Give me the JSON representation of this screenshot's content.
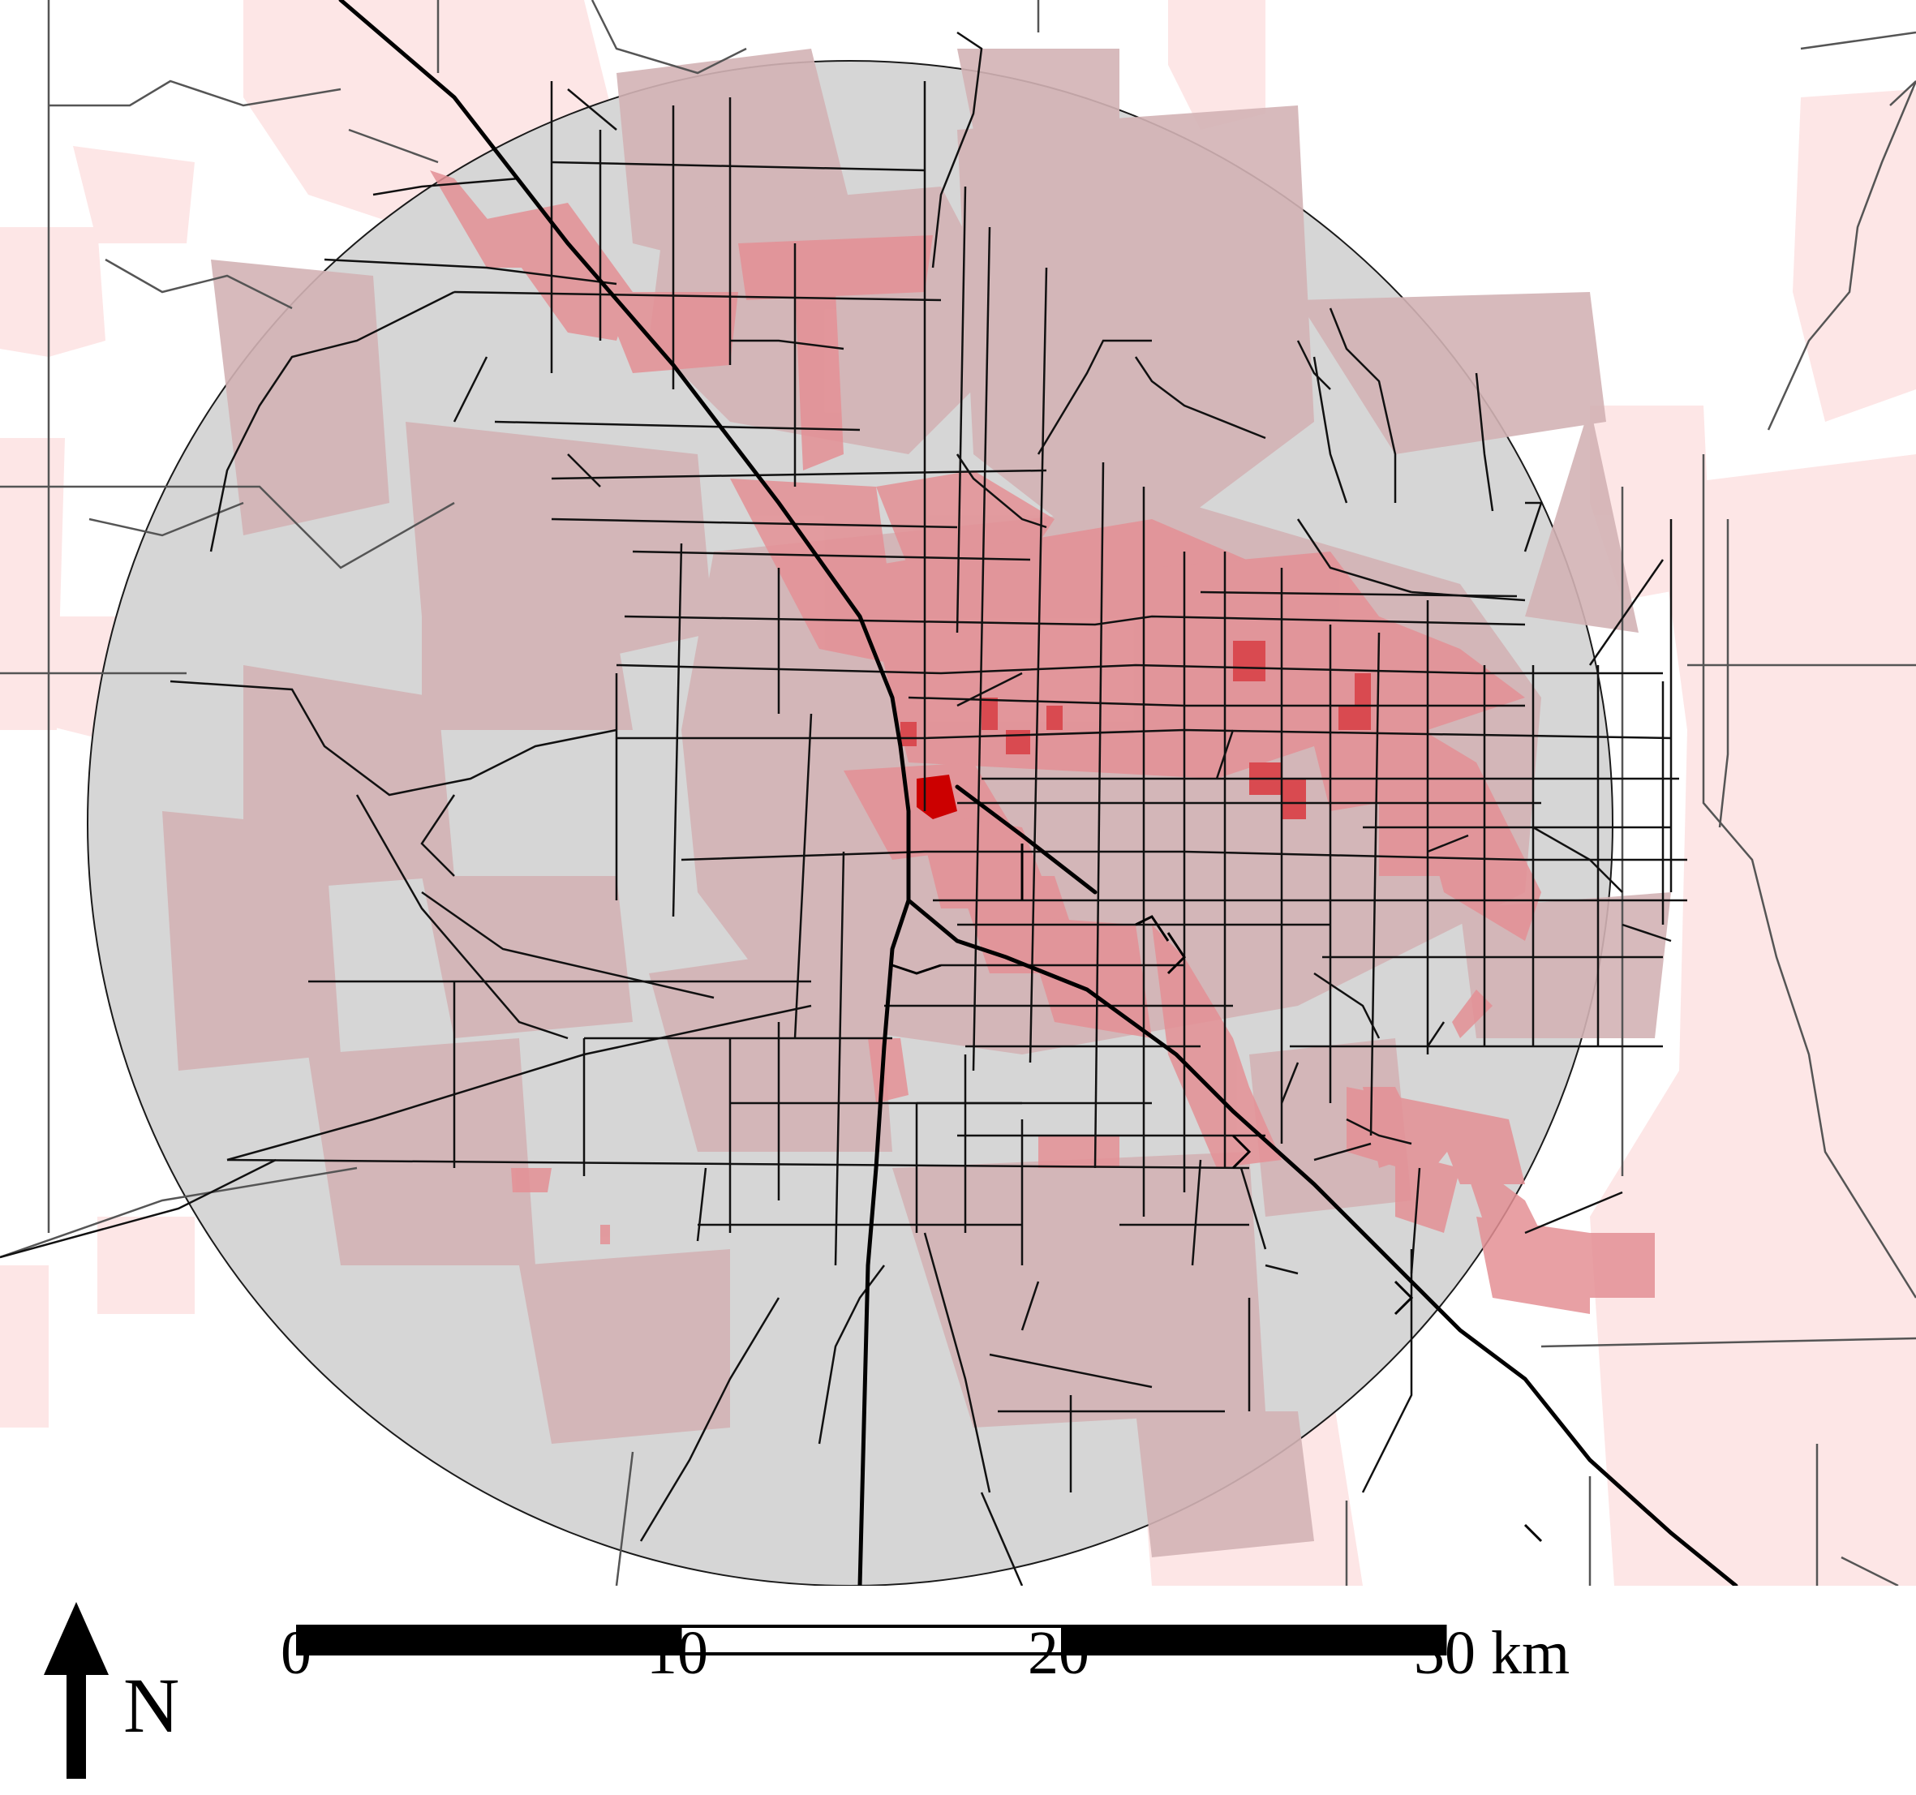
{
  "map": {
    "colors": {
      "background": "#ffffff",
      "circle_fill": "#d6d6d6",
      "circle_stroke": "#1a1a1a",
      "density_light": "#fde6e6",
      "density_medium": "#d9a9ab",
      "density_high": "#e07b80",
      "density_very_high": "#cc1a1a",
      "roads": "#111111",
      "outer_roads": "#666666"
    },
    "layers": [
      "study-area-circle",
      "population-density",
      "road-network",
      "interstate"
    ]
  },
  "north_arrow": {
    "label": "N",
    "icon": "north-arrow-icon"
  },
  "scale_bar": {
    "ticks": [
      "0",
      "10",
      "20",
      "30 km"
    ],
    "segments": [
      {
        "from": 0,
        "to": 10,
        "fill": "black"
      },
      {
        "from": 10,
        "to": 20,
        "fill": "white"
      },
      {
        "from": 20,
        "to": 30,
        "fill": "black"
      }
    ],
    "unit": "km"
  }
}
